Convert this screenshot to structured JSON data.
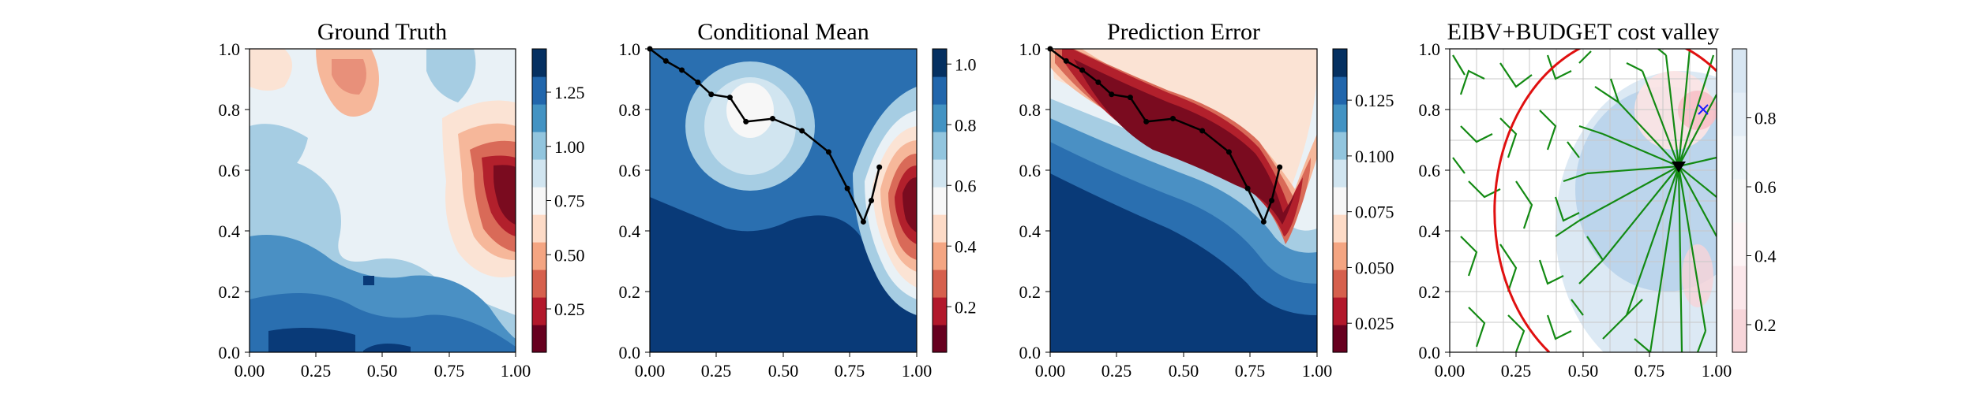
{
  "figure": {
    "panels": [
      {
        "title": "Ground Truth",
        "axis_ticks": [
          "0.00",
          "0.25",
          "0.50",
          "0.75",
          "1.00"
        ],
        "y_ticks": [
          "0.0",
          "0.2",
          "0.4",
          "0.6",
          "0.8",
          "1.0"
        ],
        "colorbar_ticks": [
          "0.25",
          "0.50",
          "0.75",
          "1.00",
          "1.25"
        ],
        "colorbar_range": [
          0.05,
          1.45
        ],
        "colormap": "RdBu"
      },
      {
        "title": "Conditional Mean",
        "axis_ticks": [
          "0.00",
          "0.25",
          "0.50",
          "0.75",
          "1.00"
        ],
        "y_ticks": [
          "0.0",
          "0.2",
          "0.4",
          "0.6",
          "0.8",
          "1.0"
        ],
        "colorbar_ticks": [
          "0.2",
          "0.4",
          "0.6",
          "0.8",
          "1.0"
        ],
        "colorbar_range": [
          0.05,
          1.05
        ],
        "colormap": "RdBu"
      },
      {
        "title": "Prediction Error",
        "axis_ticks": [
          "0.00",
          "0.25",
          "0.50",
          "0.75",
          "1.00"
        ],
        "y_ticks": [
          "0.0",
          "0.2",
          "0.4",
          "0.6",
          "0.8",
          "1.0"
        ],
        "colorbar_ticks": [
          "0.025",
          "0.050",
          "0.075",
          "0.100",
          "0.125"
        ],
        "colorbar_range": [
          0.012,
          0.148
        ],
        "colormap": "RdBu"
      },
      {
        "title": "EIBV+BUDGET cost valley",
        "axis_ticks": [
          "0.00",
          "0.25",
          "0.50",
          "0.75",
          "1.00"
        ],
        "y_ticks": [
          "0.0",
          "0.2",
          "0.4",
          "0.6",
          "0.8",
          "1.0"
        ],
        "colorbar_ticks": [
          "0.2",
          "0.4",
          "0.6",
          "0.8"
        ],
        "colorbar_range": [
          0.12,
          1.0
        ],
        "colormap": "RdBu"
      }
    ]
  },
  "chart_data": [
    {
      "type": "heatmap",
      "title": "Ground Truth",
      "xlim": [
        0,
        1
      ],
      "ylim": [
        0,
        1
      ],
      "colorbar_ticks": [
        0.25,
        0.5,
        0.75,
        1.0,
        1.25
      ],
      "features": {
        "low_region": {
          "x": 0.93,
          "y": 0.55,
          "value": 0.1
        },
        "high_region": {
          "x": 0.25,
          "y": 0.05,
          "value": 1.4
        },
        "moderate_low_region": {
          "x": 0.38,
          "y": 0.9,
          "value": 0.55
        }
      }
    },
    {
      "type": "heatmap",
      "title": "Conditional Mean",
      "xlim": [
        0,
        1
      ],
      "ylim": [
        0,
        1
      ],
      "colorbar_ticks": [
        0.2,
        0.4,
        0.6,
        0.8,
        1.0
      ],
      "path": {
        "x": [
          0.0,
          0.06,
          0.12,
          0.18,
          0.23,
          0.3,
          0.36,
          0.46,
          0.57,
          0.67,
          0.74,
          0.8,
          0.83,
          0.86
        ],
        "y": [
          1.0,
          0.96,
          0.93,
          0.89,
          0.85,
          0.84,
          0.76,
          0.77,
          0.73,
          0.66,
          0.54,
          0.43,
          0.5,
          0.61
        ]
      }
    },
    {
      "type": "heatmap",
      "title": "Prediction Error",
      "xlim": [
        0,
        1
      ],
      "ylim": [
        0,
        1
      ],
      "colorbar_ticks": [
        0.025,
        0.05,
        0.075,
        0.1,
        0.125
      ],
      "path": {
        "x": [
          0.0,
          0.06,
          0.12,
          0.18,
          0.23,
          0.3,
          0.36,
          0.46,
          0.57,
          0.67,
          0.74,
          0.8,
          0.83,
          0.86
        ],
        "y": [
          1.0,
          0.96,
          0.93,
          0.89,
          0.85,
          0.84,
          0.76,
          0.77,
          0.73,
          0.66,
          0.54,
          0.43,
          0.5,
          0.61
        ]
      }
    },
    {
      "type": "heatmap",
      "title": "EIBV+BUDGET cost valley",
      "xlim": [
        0,
        1
      ],
      "ylim": [
        0,
        1
      ],
      "colorbar_ticks": [
        0.2,
        0.4,
        0.6,
        0.8
      ],
      "current_location": {
        "x": 0.86,
        "y": 0.61
      },
      "target_location": {
        "x": 0.96,
        "y": 0.79
      },
      "budget_ellipse": {
        "center_x": 0.86,
        "center_y": 0.37,
        "radius_x": 0.42,
        "radius_y": 0.56
      }
    }
  ]
}
